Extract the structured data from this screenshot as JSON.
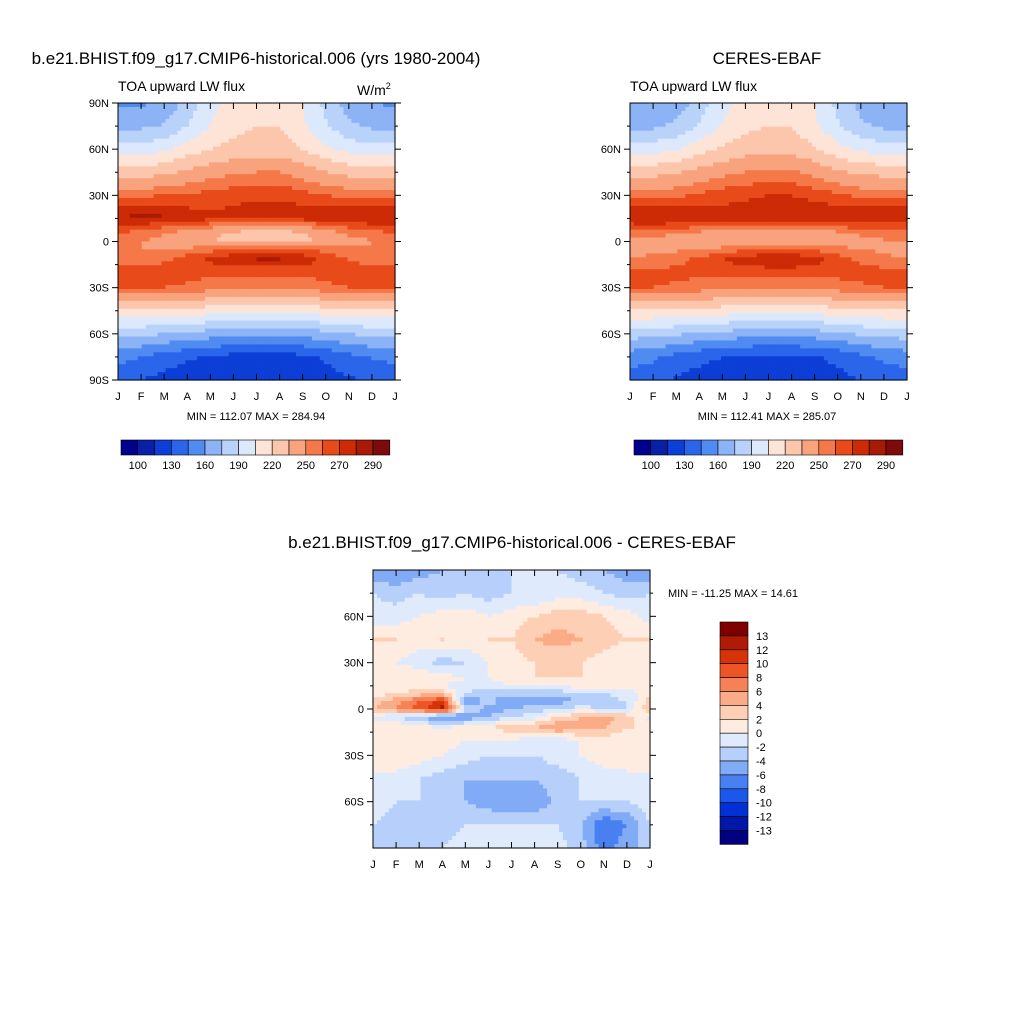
{
  "chart_data": [
    {
      "type": "heatmap",
      "id": "model",
      "title": "b.e21.BHIST.f09_g17.CMIP6-historical.006 (yrs 1980-2004)",
      "left_label": "TOA upward LW flux",
      "units_base": "W/m",
      "units_exp": "2",
      "x_ticks": [
        "J",
        "F",
        "M",
        "A",
        "M",
        "J",
        "J",
        "A",
        "S",
        "O",
        "N",
        "D",
        "J"
      ],
      "y_ticks": [
        "90N",
        "60N",
        "30N",
        "0",
        "30S",
        "60S",
        "90S"
      ],
      "y_tick_values": [
        90,
        60,
        30,
        0,
        -30,
        -60,
        -90
      ],
      "xlim": [
        0,
        12
      ],
      "ylim": [
        -90,
        90
      ],
      "stats": "MIN = 112.07 MAX = 284.94",
      "colorbar_labels": [
        "100",
        "130",
        "160",
        "190",
        "220",
        "250",
        "270",
        "290"
      ],
      "field": {
        "x": [
          0,
          1,
          2,
          3,
          4,
          5,
          6,
          7,
          8,
          9,
          10,
          11,
          12
        ],
        "y": [
          -90,
          -75,
          -60,
          -45,
          -30,
          -20,
          -12,
          -5,
          0,
          5,
          10,
          15,
          20,
          30,
          45,
          60,
          75,
          90
        ],
        "z": [
          [
            135,
            130,
            125,
            122,
            120,
            118,
            118,
            118,
            120,
            124,
            128,
            132,
            135
          ],
          [
            150,
            145,
            138,
            132,
            128,
            125,
            124,
            124,
            126,
            132,
            140,
            146,
            150
          ],
          [
            180,
            178,
            175,
            172,
            168,
            165,
            164,
            164,
            166,
            170,
            175,
            179,
            180
          ],
          [
            218,
            218,
            216,
            214,
            212,
            210,
            209,
            209,
            210,
            213,
            216,
            218,
            218
          ],
          [
            262,
            262,
            260,
            258,
            256,
            254,
            253,
            253,
            254,
            257,
            260,
            262,
            262
          ],
          [
            268,
            268,
            266,
            264,
            262,
            262,
            262,
            262,
            262,
            264,
            266,
            268,
            268
          ],
          [
            252,
            254,
            258,
            266,
            272,
            278,
            281,
            281,
            276,
            268,
            260,
            254,
            252
          ],
          [
            250,
            250,
            250,
            252,
            256,
            262,
            266,
            266,
            262,
            256,
            252,
            250,
            250
          ],
          [
            252,
            250,
            246,
            240,
            236,
            232,
            230,
            230,
            232,
            238,
            244,
            250,
            252
          ],
          [
            258,
            256,
            250,
            244,
            238,
            232,
            226,
            226,
            234,
            244,
            252,
            256,
            258
          ],
          [
            268,
            266,
            262,
            258,
            254,
            250,
            246,
            246,
            250,
            256,
            262,
            266,
            268
          ],
          [
            280,
            283,
            282,
            276,
            272,
            272,
            274,
            274,
            274,
            276,
            278,
            280,
            280
          ],
          [
            276,
            278,
            276,
            272,
            270,
            272,
            274,
            274,
            274,
            274,
            276,
            276,
            276
          ],
          [
            258,
            258,
            260,
            262,
            264,
            266,
            268,
            268,
            264,
            260,
            258,
            258,
            258
          ],
          [
            228,
            228,
            232,
            238,
            244,
            248,
            250,
            250,
            244,
            236,
            230,
            228,
            228
          ],
          [
            195,
            196,
            202,
            212,
            220,
            225,
            228,
            228,
            220,
            208,
            200,
            195,
            195
          ],
          [
            172,
            172,
            176,
            190,
            205,
            215,
            220,
            220,
            208,
            192,
            178,
            172,
            172
          ],
          [
            158,
            158,
            164,
            180,
            200,
            212,
            218,
            218,
            205,
            185,
            168,
            160,
            158
          ]
        ]
      }
    },
    {
      "type": "heatmap",
      "id": "obs",
      "title": "CERES-EBAF",
      "left_label": "TOA upward LW flux",
      "x_ticks": [
        "J",
        "F",
        "M",
        "A",
        "M",
        "J",
        "J",
        "A",
        "S",
        "O",
        "N",
        "D",
        "J"
      ],
      "y_ticks": [
        "60N",
        "30N",
        "0",
        "30S",
        "60S"
      ],
      "y_tick_values": [
        60,
        30,
        0,
        -30,
        -60
      ],
      "xlim": [
        0,
        12
      ],
      "ylim": [
        -90,
        90
      ],
      "stats": "MIN = 112.41 MAX = 285.07",
      "colorbar_labels": [
        "100",
        "130",
        "160",
        "190",
        "220",
        "250",
        "270",
        "290"
      ],
      "field": {
        "x": [
          0,
          1,
          2,
          3,
          4,
          5,
          6,
          7,
          8,
          9,
          10,
          11,
          12
        ],
        "y": [
          -90,
          -75,
          -60,
          -45,
          -30,
          -20,
          -12,
          -5,
          0,
          5,
          10,
          15,
          20,
          30,
          45,
          60,
          75,
          90
        ],
        "z": [
          [
            138,
            134,
            128,
            124,
            121,
            119,
            119,
            119,
            121,
            125,
            130,
            135,
            138
          ],
          [
            152,
            148,
            140,
            134,
            130,
            127,
            126,
            126,
            128,
            134,
            142,
            148,
            152
          ],
          [
            182,
            180,
            177,
            174,
            170,
            167,
            166,
            166,
            168,
            172,
            177,
            180,
            182
          ],
          [
            218,
            218,
            217,
            215,
            213,
            211,
            210,
            210,
            211,
            214,
            217,
            218,
            218
          ],
          [
            260,
            260,
            258,
            256,
            254,
            252,
            252,
            252,
            254,
            256,
            258,
            260,
            260
          ],
          [
            264,
            265,
            263,
            262,
            262,
            263,
            264,
            264,
            263,
            263,
            264,
            265,
            264
          ],
          [
            250,
            252,
            256,
            264,
            270,
            276,
            280,
            280,
            274,
            266,
            258,
            252,
            250
          ],
          [
            248,
            248,
            248,
            250,
            254,
            258,
            262,
            262,
            258,
            254,
            250,
            248,
            248
          ],
          [
            248,
            246,
            244,
            240,
            238,
            236,
            236,
            236,
            238,
            240,
            244,
            248,
            248
          ],
          [
            256,
            254,
            250,
            246,
            242,
            238,
            236,
            236,
            240,
            246,
            252,
            256,
            256
          ],
          [
            266,
            266,
            264,
            262,
            260,
            258,
            256,
            256,
            258,
            262,
            264,
            266,
            266
          ],
          [
            278,
            282,
            280,
            276,
            274,
            274,
            276,
            276,
            276,
            276,
            278,
            278,
            278
          ],
          [
            274,
            276,
            276,
            272,
            272,
            274,
            276,
            276,
            276,
            274,
            274,
            274,
            274
          ],
          [
            256,
            256,
            258,
            262,
            266,
            268,
            270,
            270,
            266,
            262,
            258,
            256,
            256
          ],
          [
            230,
            230,
            234,
            240,
            246,
            250,
            252,
            252,
            246,
            238,
            232,
            230,
            230
          ],
          [
            196,
            198,
            204,
            214,
            222,
            228,
            230,
            230,
            222,
            210,
            202,
            198,
            196
          ],
          [
            172,
            172,
            178,
            192,
            206,
            216,
            220,
            220,
            208,
            192,
            178,
            172,
            172
          ],
          [
            160,
            160,
            166,
            182,
            200,
            212,
            218,
            218,
            205,
            185,
            170,
            162,
            160
          ]
        ]
      }
    },
    {
      "type": "heatmap",
      "id": "diff",
      "title": "b.e21.BHIST.f09_g17.CMIP6-historical.006 - CERES-EBAF",
      "x_ticks": [
        "J",
        "F",
        "M",
        "A",
        "M",
        "J",
        "J",
        "A",
        "S",
        "O",
        "N",
        "D",
        "J"
      ],
      "y_ticks": [
        "60N",
        "30N",
        "0",
        "30S",
        "60S"
      ],
      "y_tick_values": [
        60,
        30,
        0,
        -30,
        -60
      ],
      "xlim": [
        0,
        12
      ],
      "ylim": [
        -90,
        90
      ],
      "stats": "MIN = -11.25 MAX =  14.61",
      "colorbar_labels": [
        "13",
        "12",
        "10",
        "8",
        "6",
        "4",
        "2",
        "0",
        "-2",
        "-4",
        "-6",
        "-8",
        "-10",
        "-12",
        "-13"
      ],
      "field": {
        "x": [
          0,
          1,
          2,
          3,
          4,
          5,
          6,
          7,
          8,
          9,
          10,
          11,
          12
        ],
        "y": [
          -90,
          -75,
          -60,
          -45,
          -30,
          -20,
          -12,
          -5,
          0,
          5,
          10,
          15,
          20,
          30,
          45,
          60,
          75,
          90
        ],
        "z": [
          [
            -3,
            -4,
            -3,
            -2,
            -1,
            -1,
            -1,
            -1,
            -1,
            -3,
            -7,
            -5,
            -3
          ],
          [
            -2,
            -3,
            -2,
            -3,
            -2,
            -2,
            -2,
            -2,
            -2,
            -4,
            -8,
            -6,
            -2
          ],
          [
            -1,
            -2,
            -2,
            -3,
            -4,
            -5,
            -6,
            -6,
            -3,
            -2,
            -2,
            -2,
            -1
          ],
          [
            -1,
            -1,
            -2,
            -3,
            -4,
            -4,
            -4,
            -4,
            -3,
            -2,
            -1,
            -1,
            -1
          ],
          [
            2,
            2,
            1,
            0,
            -1,
            -2,
            -2,
            -2,
            -1,
            0,
            1,
            2,
            2
          ],
          [
            1,
            2,
            1,
            1,
            0,
            0,
            0,
            -1,
            -1,
            0,
            1,
            1,
            1
          ],
          [
            2,
            2,
            1,
            0,
            1,
            2,
            3,
            4,
            6,
            5,
            4,
            2,
            2
          ],
          [
            -1,
            -2,
            -4,
            -7,
            -6,
            -4,
            -2,
            -1,
            2,
            4,
            5,
            3,
            -1
          ],
          [
            4,
            6,
            9,
            13,
            -1,
            -5,
            -4,
            -3,
            -2,
            -1,
            -2,
            -2,
            4
          ],
          [
            3,
            5,
            8,
            11,
            -6,
            -3,
            -6,
            -5,
            -5,
            -4,
            -3,
            -2,
            3
          ],
          [
            1,
            2,
            3,
            3,
            -2,
            -4,
            -3,
            -3,
            -3,
            -3,
            -2,
            -1,
            1
          ],
          [
            0,
            1,
            1,
            0,
            -1,
            -1,
            0,
            0,
            0,
            1,
            2,
            1,
            0
          ],
          [
            1,
            1,
            2,
            1,
            0,
            0,
            1,
            2,
            2,
            2,
            1,
            1,
            1
          ],
          [
            1,
            0,
            -1,
            -3,
            -2,
            0,
            1,
            2,
            2,
            2,
            1,
            0,
            1
          ],
          [
            2,
            2,
            1,
            2,
            1,
            2,
            2,
            4,
            5,
            4,
            3,
            2,
            2
          ],
          [
            -1,
            -1,
            0,
            1,
            1,
            0,
            1,
            2,
            3,
            3,
            2,
            1,
            -1
          ],
          [
            -2,
            -3,
            -2,
            -3,
            -2,
            -3,
            -2,
            -2,
            -1,
            -1,
            -2,
            -3,
            -2
          ],
          [
            -6,
            -6,
            -5,
            -4,
            -3,
            -2,
            -2,
            -2,
            -2,
            -3,
            -4,
            -5,
            -6
          ]
        ]
      }
    }
  ],
  "colors": {
    "abs_scale": [
      "#00008c",
      "#0a1fa8",
      "#0c3fd6",
      "#2b66ea",
      "#4f8bf0",
      "#8cb3f6",
      "#b9d2fa",
      "#dce9fd",
      "#fde4d6",
      "#fcc6ad",
      "#f9a37e",
      "#f57848",
      "#e84a1a",
      "#cc2b05",
      "#a81a05",
      "#7e0b0b"
    ],
    "diff_scale": [
      "#000080",
      "#0018a8",
      "#0031d6",
      "#1a57ea",
      "#4880f2",
      "#82abf6",
      "#b6d0fb",
      "#dfebfd",
      "#feece0",
      "#fdcfb4",
      "#fbab85",
      "#f78156",
      "#ee5525",
      "#d53308",
      "#b01b06",
      "#7e0000"
    ]
  }
}
